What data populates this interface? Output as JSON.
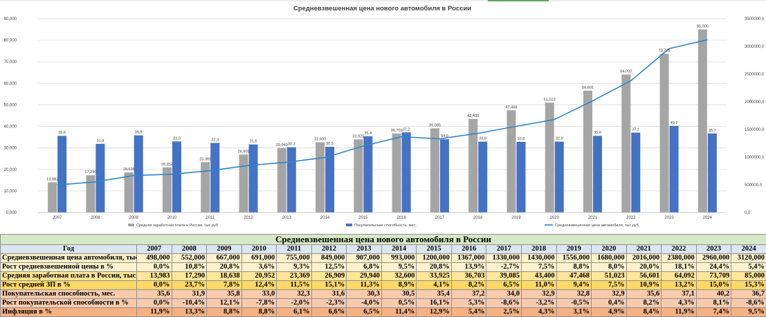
{
  "chart_data": {
    "type": "bar",
    "title": "Средневзвешенная цена нового автомобиля в России",
    "categories": [
      "2007",
      "2008",
      "2009",
      "2010",
      "2011",
      "2012",
      "2013",
      "2014",
      "2015",
      "2016",
      "2017",
      "2018",
      "2019",
      "2020",
      "2021",
      "2022",
      "2023",
      "2024"
    ],
    "series": [
      {
        "name": "Средняя заработная плата в России, тыс.руб.",
        "type": "bar",
        "axis": "left",
        "color": "#a5a5a5",
        "values": [
          13.983,
          17.29,
          18.638,
          20.952,
          23.369,
          26.909,
          29.94,
          32.6,
          33.925,
          36.703,
          39.085,
          43.4,
          47.468,
          51.023,
          56.601,
          64.092,
          73.709,
          85.0
        ],
        "labels": [
          "13,983",
          "17,290",
          "18,638",
          "20,952",
          "23,369",
          "26,909",
          "29,940",
          "32,600",
          "33,925",
          "36,703",
          "39,085",
          "43,400",
          "47,468",
          "51,023",
          "56,601",
          "64,092",
          "73,709",
          "85,000"
        ]
      },
      {
        "name": "Покупательская способность, мес.",
        "type": "bar",
        "axis": "left",
        "color": "#4472c4",
        "values": [
          35.6,
          31.9,
          35.8,
          33.0,
          32.3,
          31.6,
          30.3,
          30.5,
          35.4,
          37.2,
          34.0,
          32.9,
          32.8,
          32.9,
          35.6,
          37.1,
          40.2,
          36.7
        ],
        "labels": [
          "35,6",
          "31,9",
          "35,8",
          "33,0",
          "32,3",
          "31,6",
          "30,3",
          "30,5",
          "35,4",
          "37,2",
          "34,0",
          "32,9",
          "32,8",
          "32,9",
          "35,6",
          "37,1",
          "40,2",
          "36,7"
        ]
      },
      {
        "name": "Средневзвешенная цена автомобиля, тыс.руб.",
        "type": "line",
        "axis": "right",
        "color": "#2e86c9",
        "values": [
          498,
          552,
          667,
          691,
          755,
          849,
          907,
          993,
          1200,
          1367,
          1330,
          1430,
          1556,
          1680,
          2016,
          2380,
          2960,
          3120
        ]
      }
    ],
    "y_left": {
      "min": 0,
      "max": 90,
      "ticks": [
        "0,000",
        "10,000",
        "20,000",
        "30,000",
        "40,000",
        "50,000",
        "60,000",
        "70,000",
        "80,000",
        "90,000"
      ]
    },
    "y_right": {
      "min": 0,
      "max": 3500,
      "ticks": [
        "0,0",
        "500000,0",
        "1000000,0",
        "1500000,0",
        "2000000,0",
        "2500000,0",
        "3000000,0",
        "3500000,0"
      ]
    },
    "legend_position": "bottom"
  },
  "table": {
    "title": "Средневзвешенная цена нового автомобиля в России",
    "header_label": "Год",
    "years": [
      "2007",
      "2008",
      "2009",
      "2010",
      "2011",
      "2012",
      "2013",
      "2014",
      "2015",
      "2016",
      "2017",
      "2018",
      "2019",
      "2020",
      "2021",
      "2022",
      "2023",
      "2024"
    ],
    "rows": [
      {
        "label": "Средневзвешенная цена автомобиля, тыс.руб.",
        "values": [
          "498,000",
          "552,000",
          "667,000",
          "691,000",
          "755,000",
          "849,000",
          "907,000",
          "993,000",
          "1200,000",
          "1367,000",
          "1330,000",
          "1430,000",
          "1556,000",
          "1680,000",
          "2016,000",
          "2380,000",
          "2960,000",
          "3120,000"
        ]
      },
      {
        "label": "Рост средневзвешенной цены в %",
        "values": [
          "0,0%",
          "10,8%",
          "20,8%",
          "3,6%",
          "9,3%",
          "12,5%",
          "6,8%",
          "9,5%",
          "20,8%",
          "13,9%",
          "-2,7%",
          "7,5%",
          "8,8%",
          "8,0%",
          "20,0%",
          "18,1%",
          "24,4%",
          "5,4%"
        ]
      },
      {
        "label": "Средняя заработная плата в России, тыс.руб.",
        "values": [
          "13,983",
          "17,290",
          "18,638",
          "20,952",
          "23,369",
          "26,909",
          "29,940",
          "32,600",
          "33,925",
          "36,703",
          "39,085",
          "43,400",
          "47,468",
          "51,023",
          "56,601",
          "64,092",
          "73,709",
          "85,000"
        ]
      },
      {
        "label": "Рост средней ЗП в %",
        "values": [
          "0,0%",
          "23,7%",
          "7,8%",
          "12,4%",
          "11,5%",
          "15,1%",
          "11,3%",
          "8,9%",
          "4,1%",
          "8,2%",
          "6,5%",
          "11,0%",
          "9,4%",
          "7,5%",
          "10,9%",
          "13,2%",
          "15,0%",
          "15,3%"
        ]
      },
      {
        "label": "Покупательская способность, мес.",
        "values": [
          "35,6",
          "31,9",
          "35,8",
          "33,0",
          "32,3",
          "31,6",
          "30,3",
          "30,5",
          "35,4",
          "37,2",
          "34,0",
          "32,9",
          "32,8",
          "32,9",
          "35,6",
          "37,1",
          "40,2",
          "36,7"
        ]
      },
      {
        "label": "Рост покупательской способности в %",
        "values": [
          "0,0%",
          "-10,4%",
          "12,1%",
          "-7,8%",
          "-2,0%",
          "-2,3%",
          "-4,0%",
          "0,5%",
          "16,1%",
          "5,3%",
          "-8,6%",
          "-3,2%",
          "-0,5%",
          "0,4%",
          "8,2%",
          "4,3%",
          "8,1%",
          "-8,6%"
        ]
      },
      {
        "label": "Инфляция в %",
        "values": [
          "11,9%",
          "13,3%",
          "8,8%",
          "8,8%",
          "6,1%",
          "6,6%",
          "6,5%",
          "11,4%",
          "12,9%",
          "5,4%",
          "2,5%",
          "4,3%",
          "3,1%",
          "4,9%",
          "8,4%",
          "11,9%",
          "7,4%",
          "9,5%"
        ]
      }
    ]
  }
}
